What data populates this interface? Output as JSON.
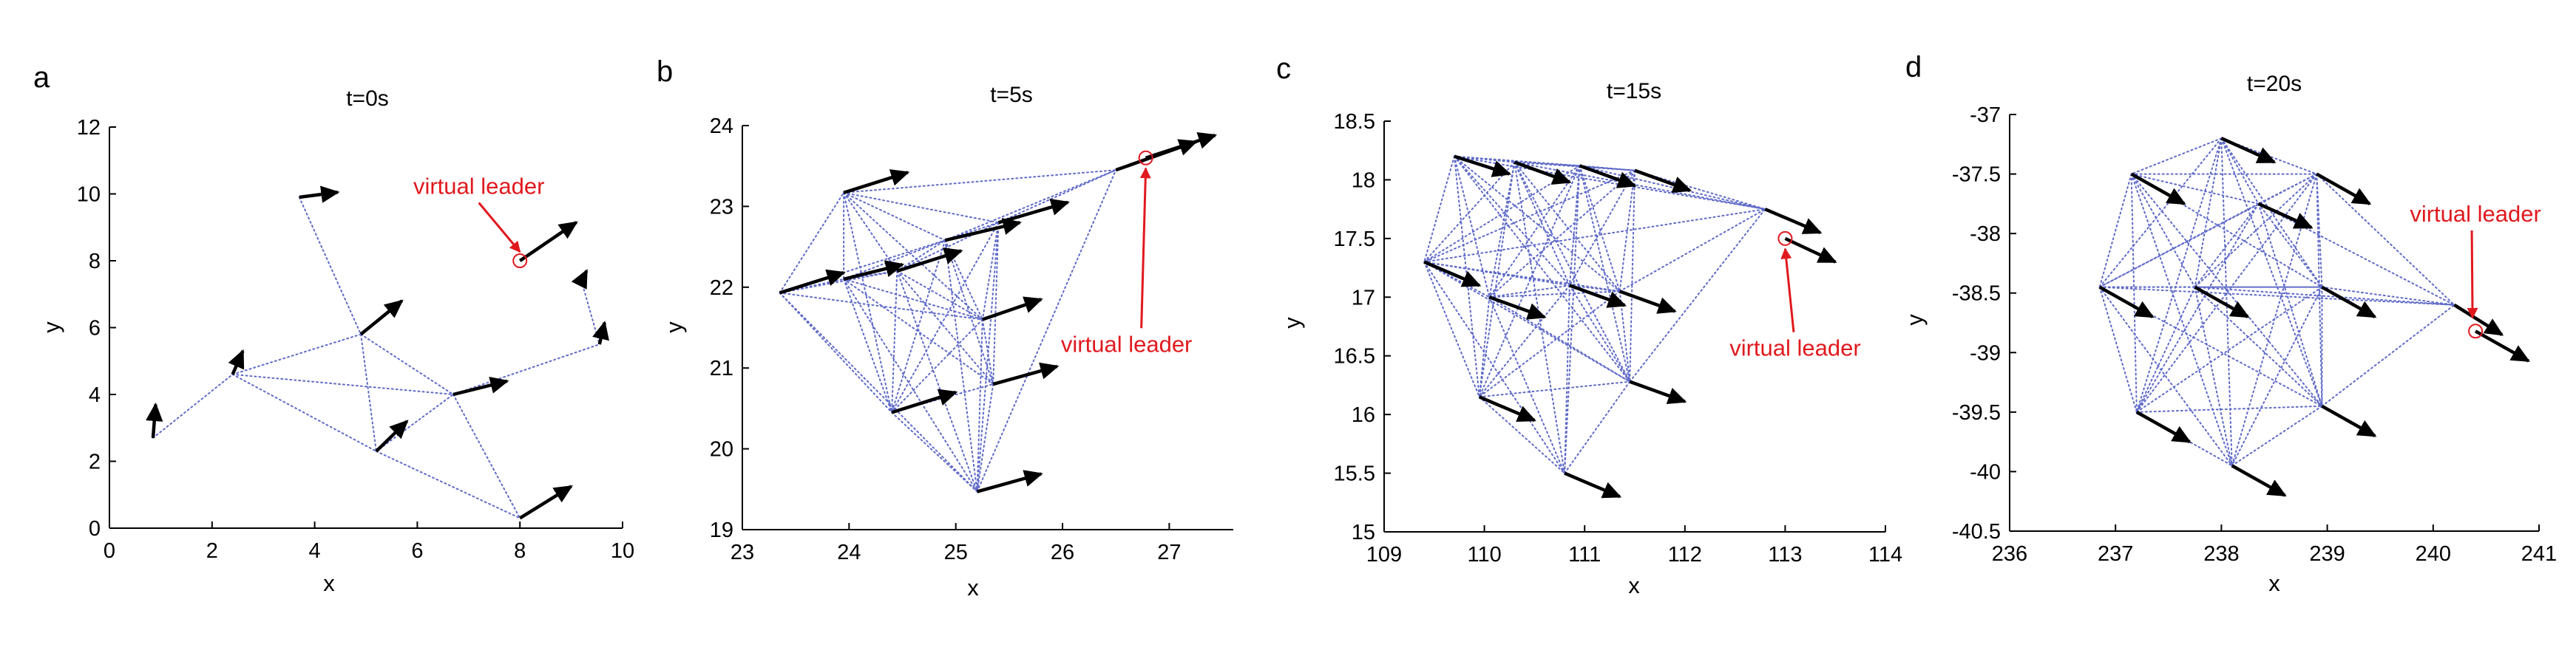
{
  "colors": {
    "edge": "#5f6ac8",
    "arrow": "#000000",
    "leader": "#e0191e"
  },
  "chart_data": [
    {
      "type": "scatter",
      "panel_label": "a",
      "title": "t=0s",
      "xlabel": "x",
      "ylabel": "y",
      "xlim": [
        0,
        10
      ],
      "ylim": [
        0,
        12
      ],
      "xticks": [
        0,
        2,
        4,
        6,
        8,
        10
      ],
      "yticks": [
        0,
        2,
        4,
        6,
        8,
        10,
        12
      ],
      "agents": [
        {
          "x": 0.85,
          "y": 2.7,
          "dx": 0.05,
          "dy": 1.0
        },
        {
          "x": 2.4,
          "y": 4.6,
          "dx": 0.2,
          "dy": 0.7
        },
        {
          "x": 3.7,
          "y": 9.9,
          "dx": 0.75,
          "dy": 0.15
        },
        {
          "x": 4.9,
          "y": 5.8,
          "dx": 0.8,
          "dy": 1.0
        },
        {
          "x": 5.2,
          "y": 2.3,
          "dx": 0.6,
          "dy": 0.9
        },
        {
          "x": 6.7,
          "y": 4.0,
          "dx": 1.05,
          "dy": 0.4
        },
        {
          "x": 8.0,
          "y": 0.3,
          "dx": 1.0,
          "dy": 0.95
        },
        {
          "x": 9.2,
          "y": 7.4,
          "dx": 0.1,
          "dy": 0.3
        },
        {
          "x": 9.55,
          "y": 5.5,
          "dx": 0.1,
          "dy": 0.65
        }
      ],
      "leader": {
        "x": 8.0,
        "y": 8.0,
        "dx": 1.1,
        "dy": 1.15
      },
      "edges": [
        [
          0,
          1
        ],
        [
          1,
          3
        ],
        [
          1,
          5
        ],
        [
          1,
          4
        ],
        [
          2,
          3
        ],
        [
          3,
          4
        ],
        [
          3,
          5
        ],
        [
          4,
          5
        ],
        [
          4,
          6
        ],
        [
          5,
          6
        ],
        [
          5,
          8
        ],
        [
          7,
          8
        ]
      ],
      "annotation": {
        "text": "virtual leader",
        "x": 7.2,
        "y": 10.0
      }
    },
    {
      "type": "scatter",
      "panel_label": "b",
      "title": "t=5s",
      "xlabel": "x",
      "ylabel": "y",
      "xlim": [
        23,
        27.6
      ],
      "ylim": [
        19,
        24
      ],
      "xticks": [
        23,
        24,
        25,
        26,
        27
      ],
      "yticks": [
        19,
        20,
        21,
        22,
        23,
        24
      ],
      "agents": [
        {
          "x": 23.35,
          "y": 21.93,
          "dx": 0.6,
          "dy": 0.25
        },
        {
          "x": 23.95,
          "y": 23.17,
          "dx": 0.6,
          "dy": 0.25
        },
        {
          "x": 23.95,
          "y": 22.1,
          "dx": 0.55,
          "dy": 0.18
        },
        {
          "x": 24.45,
          "y": 22.2,
          "dx": 0.6,
          "dy": 0.25
        },
        {
          "x": 24.9,
          "y": 22.58,
          "dx": 0.7,
          "dy": 0.22
        },
        {
          "x": 25.4,
          "y": 22.8,
          "dx": 0.65,
          "dy": 0.25
        },
        {
          "x": 25.25,
          "y": 21.6,
          "dx": 0.55,
          "dy": 0.25
        },
        {
          "x": 24.4,
          "y": 20.45,
          "dx": 0.6,
          "dy": 0.25
        },
        {
          "x": 25.35,
          "y": 20.8,
          "dx": 0.6,
          "dy": 0.22
        },
        {
          "x": 25.2,
          "y": 19.47,
          "dx": 0.6,
          "dy": 0.22
        },
        {
          "x": 26.5,
          "y": 23.45,
          "dx": 0.75,
          "dy": 0.35
        }
      ],
      "leader": {
        "x": 26.78,
        "y": 23.6,
        "dx": 0.65,
        "dy": 0.28
      },
      "edges": [
        [
          0,
          1
        ],
        [
          0,
          2
        ],
        [
          0,
          3
        ],
        [
          0,
          4
        ],
        [
          0,
          6
        ],
        [
          0,
          7
        ],
        [
          0,
          9
        ],
        [
          1,
          2
        ],
        [
          1,
          3
        ],
        [
          1,
          4
        ],
        [
          1,
          5
        ],
        [
          1,
          6
        ],
        [
          1,
          7
        ],
        [
          1,
          10
        ],
        [
          2,
          3
        ],
        [
          2,
          4
        ],
        [
          2,
          6
        ],
        [
          2,
          7
        ],
        [
          2,
          8
        ],
        [
          2,
          9
        ],
        [
          3,
          4
        ],
        [
          3,
          5
        ],
        [
          3,
          6
        ],
        [
          3,
          7
        ],
        [
          3,
          8
        ],
        [
          3,
          9
        ],
        [
          4,
          5
        ],
        [
          4,
          6
        ],
        [
          4,
          7
        ],
        [
          4,
          8
        ],
        [
          4,
          9
        ],
        [
          4,
          10
        ],
        [
          5,
          6
        ],
        [
          5,
          7
        ],
        [
          5,
          8
        ],
        [
          5,
          9
        ],
        [
          5,
          10
        ],
        [
          6,
          7
        ],
        [
          6,
          8
        ],
        [
          6,
          9
        ],
        [
          7,
          8
        ],
        [
          7,
          9
        ],
        [
          8,
          9
        ],
        [
          9,
          10
        ]
      ],
      "annotation": {
        "text": "virtual leader",
        "x": 26.6,
        "y": 21.2
      }
    },
    {
      "type": "scatter",
      "panel_label": "c",
      "title": "t=15s",
      "xlabel": "x",
      "ylabel": "y",
      "xlim": [
        109,
        114
      ],
      "ylim": [
        15,
        18.5
      ],
      "xticks": [
        109,
        110,
        111,
        112,
        113,
        114
      ],
      "yticks": [
        15,
        15.5,
        16,
        16.5,
        17,
        17.5,
        18,
        18.5
      ],
      "agents": [
        {
          "x": 109.7,
          "y": 18.2,
          "dx": 0.55,
          "dy": -0.15
        },
        {
          "x": 110.3,
          "y": 18.15,
          "dx": 0.55,
          "dy": -0.17
        },
        {
          "x": 110.95,
          "y": 18.12,
          "dx": 0.55,
          "dy": -0.17
        },
        {
          "x": 111.5,
          "y": 18.08,
          "dx": 0.55,
          "dy": -0.17
        },
        {
          "x": 109.4,
          "y": 17.3,
          "dx": 0.55,
          "dy": -0.2
        },
        {
          "x": 110.05,
          "y": 17.0,
          "dx": 0.55,
          "dy": -0.17
        },
        {
          "x": 110.85,
          "y": 17.1,
          "dx": 0.55,
          "dy": -0.17
        },
        {
          "x": 111.35,
          "y": 17.05,
          "dx": 0.55,
          "dy": -0.17
        },
        {
          "x": 109.95,
          "y": 16.15,
          "dx": 0.55,
          "dy": -0.2
        },
        {
          "x": 111.45,
          "y": 16.28,
          "dx": 0.55,
          "dy": -0.17
        },
        {
          "x": 110.8,
          "y": 15.5,
          "dx": 0.55,
          "dy": -0.2
        },
        {
          "x": 112.8,
          "y": 17.75,
          "dx": 0.55,
          "dy": -0.2
        }
      ],
      "leader": {
        "x": 113.0,
        "y": 17.5,
        "dx": 0.5,
        "dy": -0.2
      },
      "edges": [
        [
          0,
          1
        ],
        [
          0,
          2
        ],
        [
          0,
          3
        ],
        [
          0,
          4
        ],
        [
          0,
          5
        ],
        [
          0,
          6
        ],
        [
          0,
          7
        ],
        [
          0,
          8
        ],
        [
          0,
          9
        ],
        [
          0,
          11
        ],
        [
          1,
          2
        ],
        [
          1,
          3
        ],
        [
          1,
          4
        ],
        [
          1,
          5
        ],
        [
          1,
          6
        ],
        [
          1,
          7
        ],
        [
          1,
          8
        ],
        [
          1,
          9
        ],
        [
          1,
          10
        ],
        [
          1,
          11
        ],
        [
          2,
          3
        ],
        [
          2,
          4
        ],
        [
          2,
          5
        ],
        [
          2,
          6
        ],
        [
          2,
          7
        ],
        [
          2,
          8
        ],
        [
          2,
          9
        ],
        [
          2,
          10
        ],
        [
          2,
          11
        ],
        [
          3,
          4
        ],
        [
          3,
          5
        ],
        [
          3,
          6
        ],
        [
          3,
          7
        ],
        [
          3,
          9
        ],
        [
          3,
          11
        ],
        [
          4,
          5
        ],
        [
          4,
          6
        ],
        [
          4,
          7
        ],
        [
          4,
          8
        ],
        [
          4,
          9
        ],
        [
          4,
          10
        ],
        [
          4,
          11
        ],
        [
          5,
          6
        ],
        [
          5,
          7
        ],
        [
          5,
          8
        ],
        [
          5,
          9
        ],
        [
          5,
          10
        ],
        [
          6,
          7
        ],
        [
          6,
          8
        ],
        [
          6,
          9
        ],
        [
          6,
          10
        ],
        [
          7,
          8
        ],
        [
          7,
          9
        ],
        [
          7,
          11
        ],
        [
          8,
          9
        ],
        [
          8,
          10
        ],
        [
          9,
          10
        ],
        [
          9,
          11
        ]
      ],
      "annotation": {
        "text": "virtual leader",
        "x": 113.1,
        "y": 16.5
      }
    },
    {
      "type": "scatter",
      "panel_label": "d",
      "title": "t=20s",
      "xlabel": "x",
      "ylabel": "y",
      "xlim": [
        236,
        241
      ],
      "ylim": [
        -40.5,
        -37
      ],
      "xticks": [
        236,
        237,
        238,
        239,
        240,
        241
      ],
      "yticks": [
        -40.5,
        -40,
        -39.5,
        -39,
        -38.5,
        -38,
        -37.5,
        -37
      ],
      "agents": [
        {
          "x": 238.0,
          "y": -37.2,
          "dx": 0.5,
          "dy": -0.2
        },
        {
          "x": 237.15,
          "y": -37.5,
          "dx": 0.5,
          "dy": -0.25
        },
        {
          "x": 238.9,
          "y": -37.5,
          "dx": 0.5,
          "dy": -0.25
        },
        {
          "x": 238.35,
          "y": -37.75,
          "dx": 0.5,
          "dy": -0.2
        },
        {
          "x": 236.85,
          "y": -38.45,
          "dx": 0.5,
          "dy": -0.25
        },
        {
          "x": 237.75,
          "y": -38.45,
          "dx": 0.5,
          "dy": -0.25
        },
        {
          "x": 238.95,
          "y": -38.45,
          "dx": 0.5,
          "dy": -0.25
        },
        {
          "x": 237.2,
          "y": -39.5,
          "dx": 0.5,
          "dy": -0.25
        },
        {
          "x": 238.95,
          "y": -39.45,
          "dx": 0.5,
          "dy": -0.25
        },
        {
          "x": 238.1,
          "y": -39.95,
          "dx": 0.5,
          "dy": -0.25
        },
        {
          "x": 240.2,
          "y": -38.6,
          "dx": 0.45,
          "dy": -0.25
        }
      ],
      "leader": {
        "x": 240.4,
        "y": -38.82,
        "dx": 0.5,
        "dy": -0.25
      },
      "edges": [
        [
          0,
          1
        ],
        [
          0,
          2
        ],
        [
          0,
          3
        ],
        [
          0,
          4
        ],
        [
          0,
          5
        ],
        [
          0,
          6
        ],
        [
          0,
          7
        ],
        [
          0,
          8
        ],
        [
          0,
          9
        ],
        [
          1,
          2
        ],
        [
          1,
          3
        ],
        [
          1,
          4
        ],
        [
          1,
          5
        ],
        [
          1,
          6
        ],
        [
          1,
          7
        ],
        [
          1,
          8
        ],
        [
          1,
          9
        ],
        [
          2,
          3
        ],
        [
          2,
          4
        ],
        [
          2,
          5
        ],
        [
          2,
          6
        ],
        [
          2,
          7
        ],
        [
          2,
          8
        ],
        [
          2,
          9
        ],
        [
          2,
          10
        ],
        [
          3,
          4
        ],
        [
          3,
          5
        ],
        [
          3,
          6
        ],
        [
          3,
          7
        ],
        [
          3,
          8
        ],
        [
          3,
          10
        ],
        [
          4,
          5
        ],
        [
          4,
          6
        ],
        [
          4,
          7
        ],
        [
          4,
          8
        ],
        [
          4,
          9
        ],
        [
          4,
          10
        ],
        [
          5,
          6
        ],
        [
          5,
          7
        ],
        [
          5,
          8
        ],
        [
          5,
          9
        ],
        [
          5,
          10
        ],
        [
          6,
          7
        ],
        [
          6,
          8
        ],
        [
          6,
          9
        ],
        [
          6,
          10
        ],
        [
          7,
          8
        ],
        [
          7,
          9
        ],
        [
          8,
          9
        ],
        [
          8,
          10
        ]
      ],
      "annotation": {
        "text": "virtual leader",
        "x": 240.4,
        "y": -37.9
      }
    }
  ]
}
